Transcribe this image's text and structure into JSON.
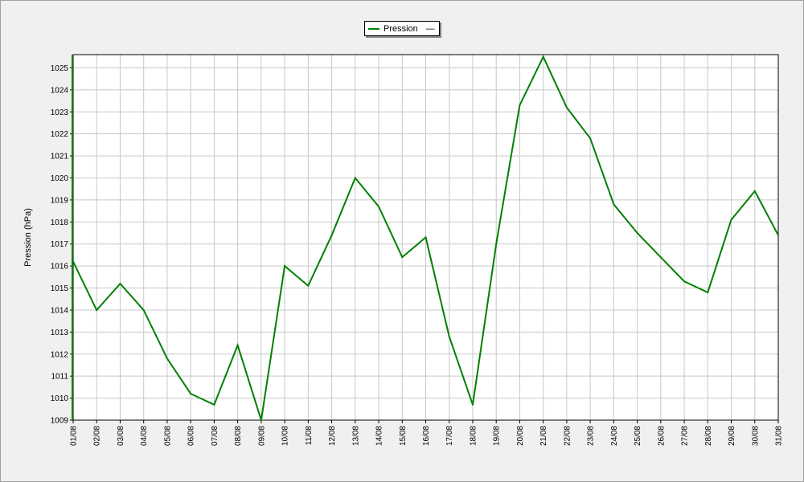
{
  "chart_data": {
    "type": "line",
    "ylabel": "Pression (hPa)",
    "ylim": [
      1009,
      1025.6
    ],
    "yticks": [
      1009,
      1010,
      1011,
      1012,
      1013,
      1014,
      1015,
      1016,
      1017,
      1018,
      1019,
      1020,
      1021,
      1022,
      1023,
      1024,
      1025
    ],
    "categories": [
      "01/08",
      "02/08",
      "03/08",
      "04/08",
      "05/08",
      "06/08",
      "07/08",
      "08/08",
      "09/08",
      "10/08",
      "11/08",
      "12/08",
      "13/08",
      "14/08",
      "15/08",
      "16/08",
      "17/08",
      "18/08",
      "19/08",
      "20/08",
      "21/08",
      "22/08",
      "23/08",
      "24/08",
      "25/08",
      "26/08",
      "27/08",
      "28/08",
      "29/08",
      "30/08",
      "31/08"
    ],
    "series": [
      {
        "name": "Pression",
        "color": "#008000",
        "values": [
          1016.2,
          1014.0,
          1015.2,
          1014.0,
          1011.8,
          1010.2,
          1009.7,
          1012.4,
          1009.0,
          1016.0,
          1015.1,
          1017.4,
          1020.0,
          1018.7,
          1016.4,
          1017.3,
          1012.8,
          1009.7,
          1017.0,
          1023.3,
          1025.5,
          1023.2,
          1021.8,
          1018.8,
          1017.5,
          1016.4,
          1015.3,
          1014.8,
          1018.1,
          1019.4,
          1017.4
        ]
      }
    ],
    "legend": {
      "position": "top-center",
      "entries": [
        "Pression"
      ],
      "suffix": "—"
    },
    "grid": true
  }
}
